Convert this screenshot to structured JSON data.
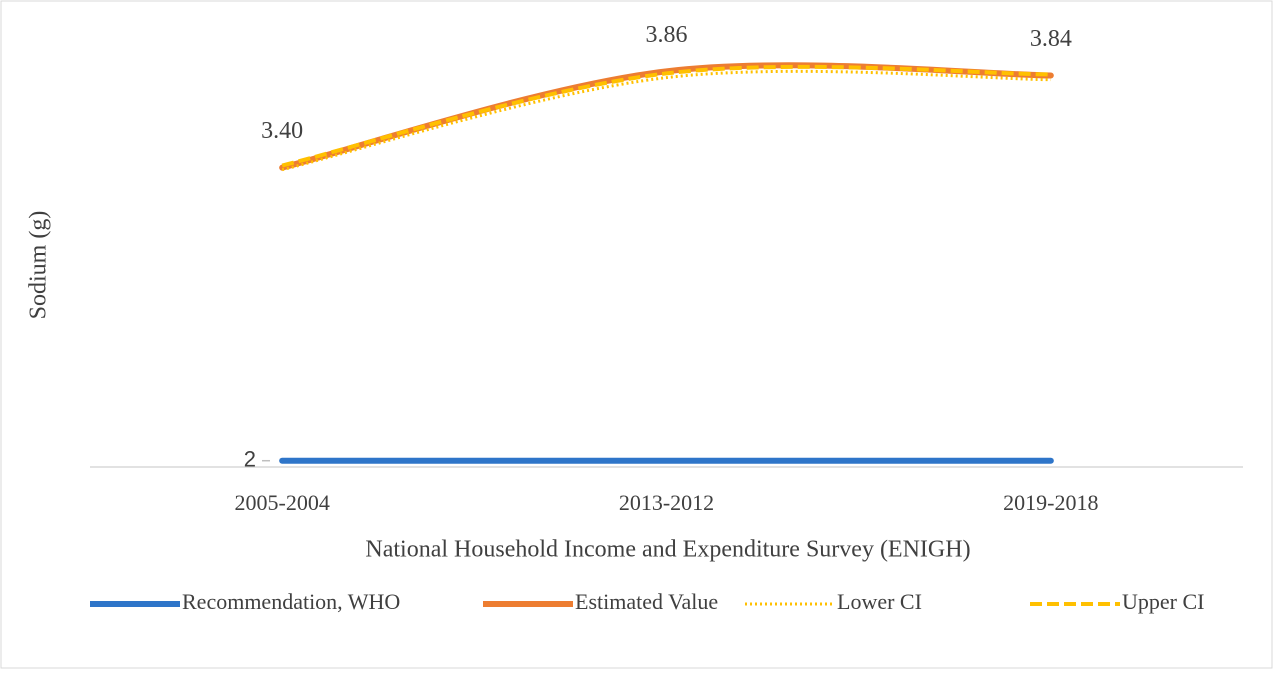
{
  "chart_data": {
    "type": "line",
    "x_label": "National Household Income and Expenditure Survey (ENIGH)",
    "y_label": "Sodium (g)",
    "categories": [
      "2005-2004",
      "2013-2012",
      "2019-2018"
    ],
    "ylim": [
      1.97,
      4.0
    ],
    "yticks": [
      2
    ],
    "smooth": true,
    "grid": false,
    "legend": "bottom",
    "series": [
      {
        "name": "Recommendation, WHO",
        "color": "#2e75c9",
        "dash": "solid",
        "values": [
          2,
          2,
          2
        ]
      },
      {
        "name": "Estimated Value",
        "color": "#ed7d31",
        "dash": "solid",
        "values": [
          3.4,
          3.86,
          3.84
        ],
        "value_labels": [
          "3.40",
          "3.86",
          "3.84"
        ]
      },
      {
        "name": "Lower CI",
        "color": "#ffc000",
        "dash": "dotted",
        "values": [
          3.39,
          3.83,
          3.82
        ]
      },
      {
        "name": "Upper CI",
        "color": "#ffc000",
        "dash": "dashed",
        "values": [
          3.41,
          3.85,
          3.845
        ]
      }
    ]
  }
}
